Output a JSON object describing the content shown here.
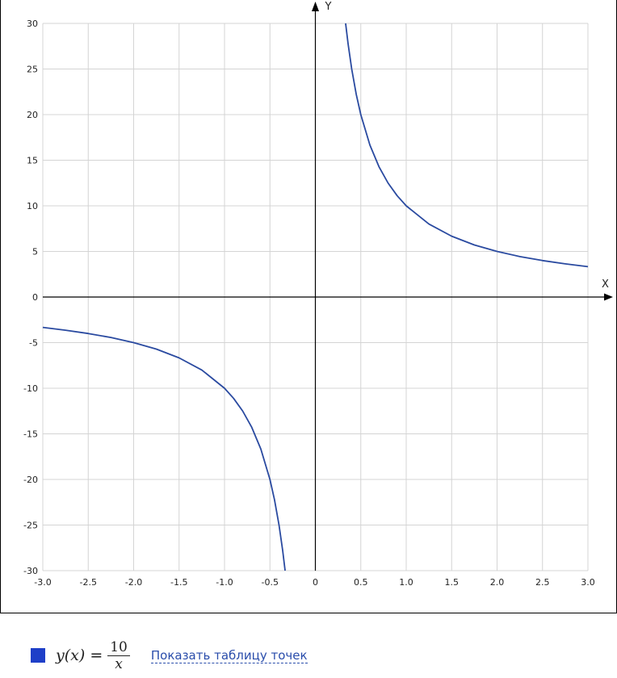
{
  "chart_data": {
    "type": "line",
    "x_axis_label": "X",
    "y_axis_label": "Y",
    "xlim": [
      -3,
      3
    ],
    "ylim": [
      -30,
      30
    ],
    "grid": true,
    "x_ticks": [
      -3,
      -2.5,
      -2,
      -1.5,
      -1,
      -0.5,
      0,
      0.5,
      1,
      1.5,
      2,
      2.5,
      3
    ],
    "x_tick_labels": [
      "-3.0",
      "-2.5",
      "-2.0",
      "-1.5",
      "-1.0",
      "-0.5",
      "0",
      "0.5",
      "1.0",
      "1.5",
      "2.0",
      "2.5",
      "3.0"
    ],
    "y_ticks": [
      30,
      25,
      20,
      15,
      10,
      5,
      0,
      -5,
      -10,
      -15,
      -20,
      -25,
      -30
    ],
    "y_tick_labels": [
      "30",
      "25",
      "20",
      "15",
      "10",
      "5",
      "0",
      "-5",
      "-10",
      "-15",
      "-20",
      "-25",
      "-30"
    ],
    "series": [
      {
        "function": "y = 10/x",
        "color": "#2a4aa0",
        "branches": [
          {
            "x": [
              -3.0,
              -2.75,
              -2.5,
              -2.25,
              -2.0,
              -1.75,
              -1.5,
              -1.25,
              -1.0,
              -0.9,
              -0.8,
              -0.7,
              -0.6,
              -0.5,
              -0.45,
              -0.4,
              -0.36,
              -0.333
            ],
            "y": [
              -3.33,
              -3.64,
              -4.0,
              -4.44,
              -5.0,
              -5.71,
              -6.67,
              -8.0,
              -10.0,
              -11.11,
              -12.5,
              -14.29,
              -16.67,
              -20.0,
              -22.22,
              -25.0,
              -27.78,
              -30.0
            ]
          },
          {
            "x": [
              0.333,
              0.36,
              0.4,
              0.45,
              0.5,
              0.6,
              0.7,
              0.8,
              0.9,
              1.0,
              1.25,
              1.5,
              1.75,
              2.0,
              2.25,
              2.5,
              2.75,
              3.0
            ],
            "y": [
              30.0,
              27.78,
              25.0,
              22.22,
              20.0,
              16.67,
              14.29,
              12.5,
              11.11,
              10.0,
              8.0,
              6.67,
              5.71,
              5.0,
              4.44,
              4.0,
              3.64,
              3.33
            ]
          }
        ]
      }
    ]
  },
  "legend": {
    "swatch_color": "#1e3fc8",
    "formula_lhs": "y(x) =",
    "formula_numerator": "10",
    "formula_denominator": "x",
    "link_text": "Показать таблицу точек"
  }
}
